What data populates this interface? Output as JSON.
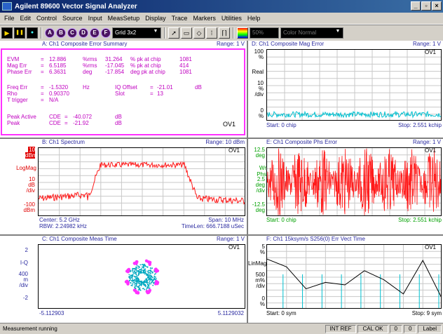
{
  "window": {
    "title": "Agilent 89600 Vector Signal Analyzer",
    "min": "_",
    "max": "▫",
    "close": "×"
  },
  "menu": [
    "File",
    "Edit",
    "Control",
    "Source",
    "Input",
    "MeasSetup",
    "Display",
    "Trace",
    "Markers",
    "Utilities",
    "Help"
  ],
  "toolbar": {
    "play": "▶",
    "pause": "❚❚",
    "dot": "●",
    "traces": [
      "A",
      "B",
      "C",
      "D",
      "E",
      "F"
    ],
    "layout": "Grid 3x2",
    "zoom": "50%",
    "color_mode": "Color Normal"
  },
  "paneA": {
    "title": "A: Ch1 Composite Error Summary",
    "range": "Range: 1  V",
    "ov": "OV1",
    "rows": [
      [
        "EVM",
        "=",
        "12.886",
        "%rms",
        "31.264",
        "% pk  at  chip",
        "1081"
      ],
      [
        "Mag Err",
        "=",
        "6.5185",
        "%rms",
        "-17.045",
        "% pk  at  chip",
        "414"
      ],
      [
        "Phase Err",
        "=",
        "6.3631",
        "deg",
        "-17.854",
        "deg pk  at  chip",
        "1081"
      ]
    ],
    "freq": [
      "Freq Err",
      "=",
      "-1.5320",
      "Hz",
      "IQ Offset",
      "=",
      "-21.01",
      "dB"
    ],
    "rho": [
      "Rho",
      "=",
      "0.90370",
      "",
      "Slot",
      "=",
      "13"
    ],
    "trig": [
      "T trigger",
      "=",
      "N/A"
    ],
    "peak_active": [
      "Peak Active",
      "CDE",
      "=",
      "-40.072",
      "dB"
    ],
    "peak": [
      "Peak",
      "CDE",
      "=",
      "-21.92",
      "dB"
    ]
  },
  "paneB": {
    "title": "B: Ch1 Spectrum",
    "range": "Range: 10 dBm",
    "ov": "OV1",
    "y_top": "10",
    "y_top_unit": "dBm",
    "scale_type": "LogMag",
    "y_mid": "10",
    "y_mid_unit": "dB",
    "y_mid_unit2": "/div",
    "y_bot": "-100",
    "y_bot_unit": "dBm",
    "center": "Center: 5.2 GHz",
    "span": "Span: 10 MHz",
    "rbw": "RBW: 2.24982 kHz",
    "timelen": "TimeLen: 666.7188 uSec"
  },
  "paneC": {
    "title": "C: Ch1 Composite Meas Time",
    "range": "Range: 1  V",
    "ov": "OV1",
    "y_top": "2",
    "scale_type": "I-Q",
    "scale_val": "400",
    "scale_unit": "m",
    "scale_unit2": "/div",
    "y_bot": "-2",
    "x_left": "-5.112903",
    "x_right": "5.1129032"
  },
  "paneD": {
    "title": "D: Ch1 Composite Mag Error",
    "range": "Range: 1  V",
    "ov": "OV1",
    "y_top": "100",
    "y_top_unit": "%",
    "scale_type": "Real",
    "scale_val": "10",
    "scale_unit": "%",
    "scale_unit2": "/div",
    "y_bot": "0",
    "y_bot_unit": "%",
    "start": "Start: 0  chip",
    "stop": "Stop: 2.551 kchip"
  },
  "paneE": {
    "title": "E: Ch1 Composite Phs Error",
    "range": "Range: 1  V",
    "ov": "OV1",
    "y_top": "12.5",
    "y_top_unit": "deg",
    "scale_type": "Wr Phs",
    "scale_val": "2.5",
    "scale_unit": "deg",
    "scale_unit2": "/div",
    "y_bot": "-12.5",
    "y_bot_unit": "deg",
    "start": "Start: 0  chip",
    "stop": "Stop: 2.551 kchip"
  },
  "paneF": {
    "title": "F: Ch1 15ksym/s S256(0) Err Vect Time",
    "range": "",
    "ov": "OV1",
    "y_top": "5",
    "y_top_unit": "%",
    "scale_type": "LinMag",
    "scale_val": "500",
    "scale_unit": "m%",
    "scale_unit2": "/div",
    "y_bot": "0",
    "y_bot_unit": "%",
    "start": "Start: 0  sym",
    "stop": "Stop: 9  sym"
  },
  "status": {
    "text": "Measurement running",
    "int_ref": "INT REF",
    "cal_ok": "CAL OK",
    "c1": "0",
    "c2": "0",
    "label": "Label"
  },
  "colors": {
    "trace_red": "#ff1a1a",
    "trace_cyan": "#00c0d0",
    "title_blue": "#2a2aa0",
    "table_magenta": "#c000c0",
    "border_magenta": "#ff30ff"
  }
}
